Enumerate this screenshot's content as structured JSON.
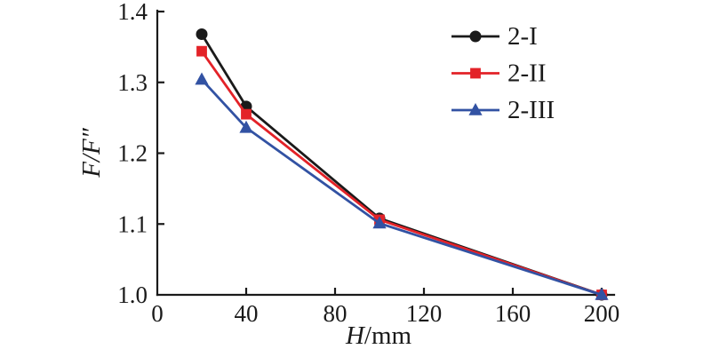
{
  "chart_data": {
    "type": "line",
    "title": "",
    "xlabel": {
      "italic": "H",
      "regular": "/mm"
    },
    "ylabel": "F/F″",
    "xlim": [
      0,
      200
    ],
    "ylim": [
      1.0,
      1.4
    ],
    "grid": false,
    "legend_position": "top-right-inside",
    "axis_color": "#1a1a1a",
    "xticks": {
      "values": [
        0,
        40,
        80,
        120,
        160,
        200
      ],
      "labels": [
        "0",
        "40",
        "80",
        "120",
        "160",
        "200"
      ]
    },
    "yticks": {
      "values": [
        1.0,
        1.1,
        1.2,
        1.3,
        1.4
      ],
      "labels": [
        "1.0",
        "1.1",
        "1.2",
        "1.3",
        "1.4"
      ]
    },
    "series": [
      {
        "name": "2-I",
        "color": "#1a1a1a",
        "marker": "circle",
        "x": [
          20,
          40,
          100,
          200
        ],
        "y": [
          1.368,
          1.266,
          1.108,
          1.0
        ]
      },
      {
        "name": "2-II",
        "color": "#e32228",
        "marker": "square",
        "x": [
          20,
          40,
          100,
          200
        ],
        "y": [
          1.344,
          1.255,
          1.106,
          1.0
        ]
      },
      {
        "name": "2-III",
        "color": "#3252a3",
        "marker": "triangle",
        "x": [
          20,
          40,
          100,
          200
        ],
        "y": [
          1.304,
          1.236,
          1.101,
          1.0
        ]
      }
    ]
  }
}
